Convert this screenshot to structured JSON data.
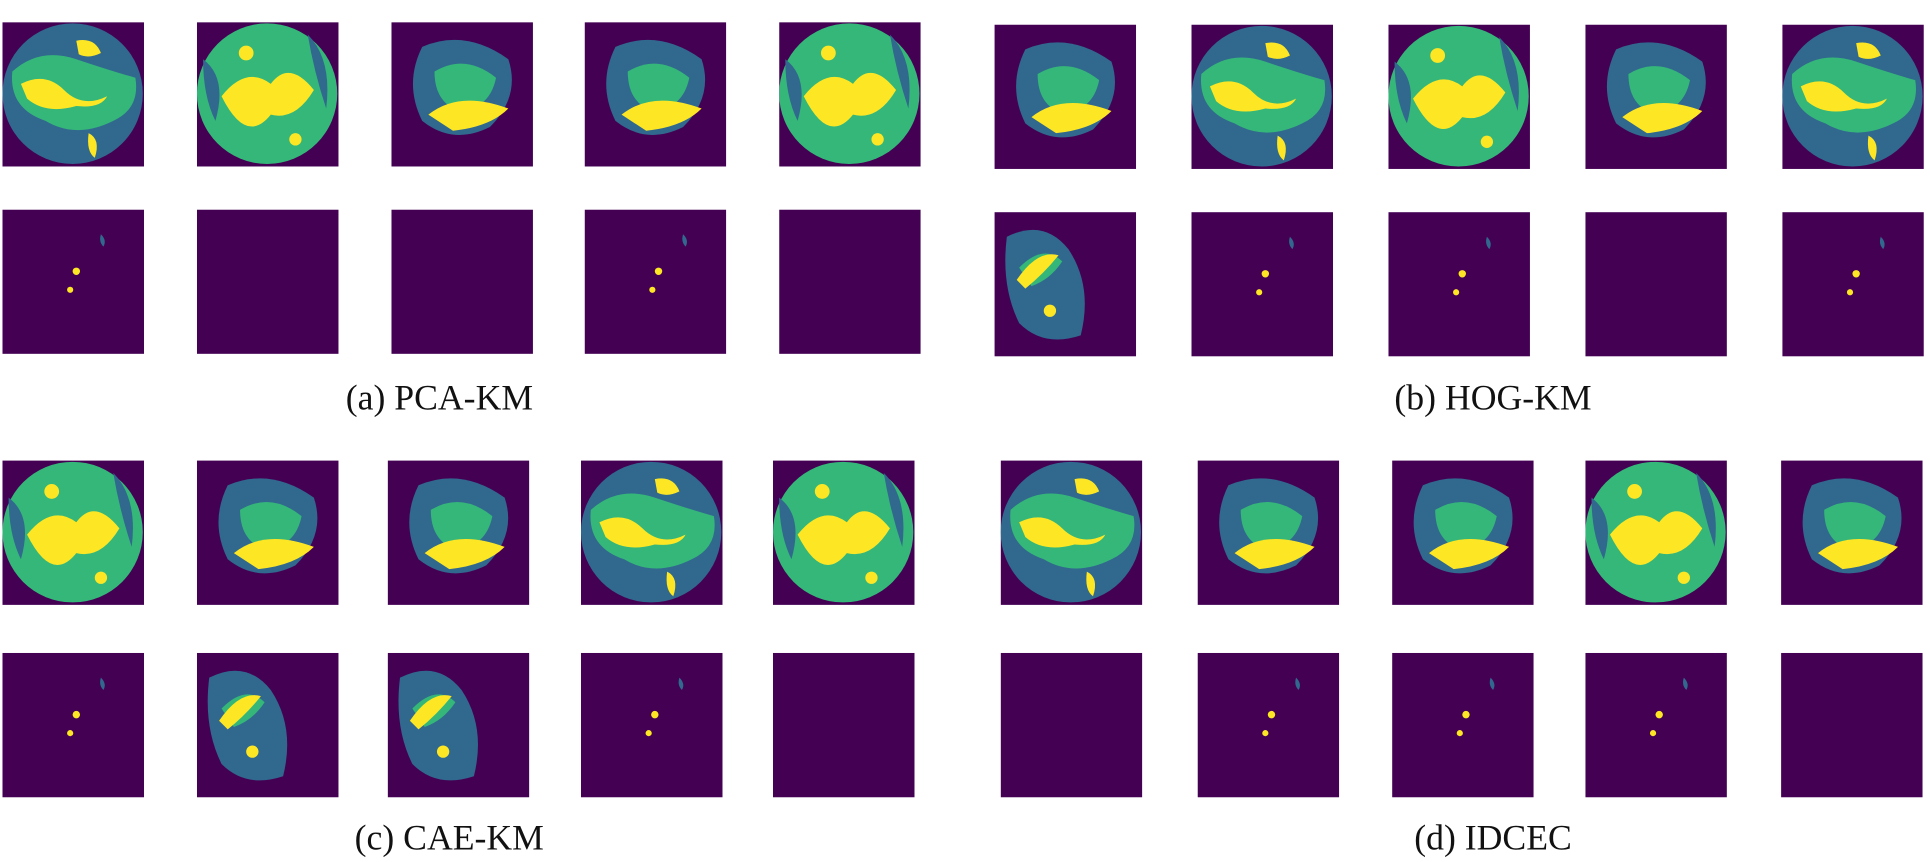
{
  "panels": [
    {
      "caption": "(a) PCA-KM"
    },
    {
      "caption": "(b) HOG-KM"
    },
    {
      "caption": "(c) CAE-KM"
    },
    {
      "caption": "(d) IDCEC"
    }
  ]
}
